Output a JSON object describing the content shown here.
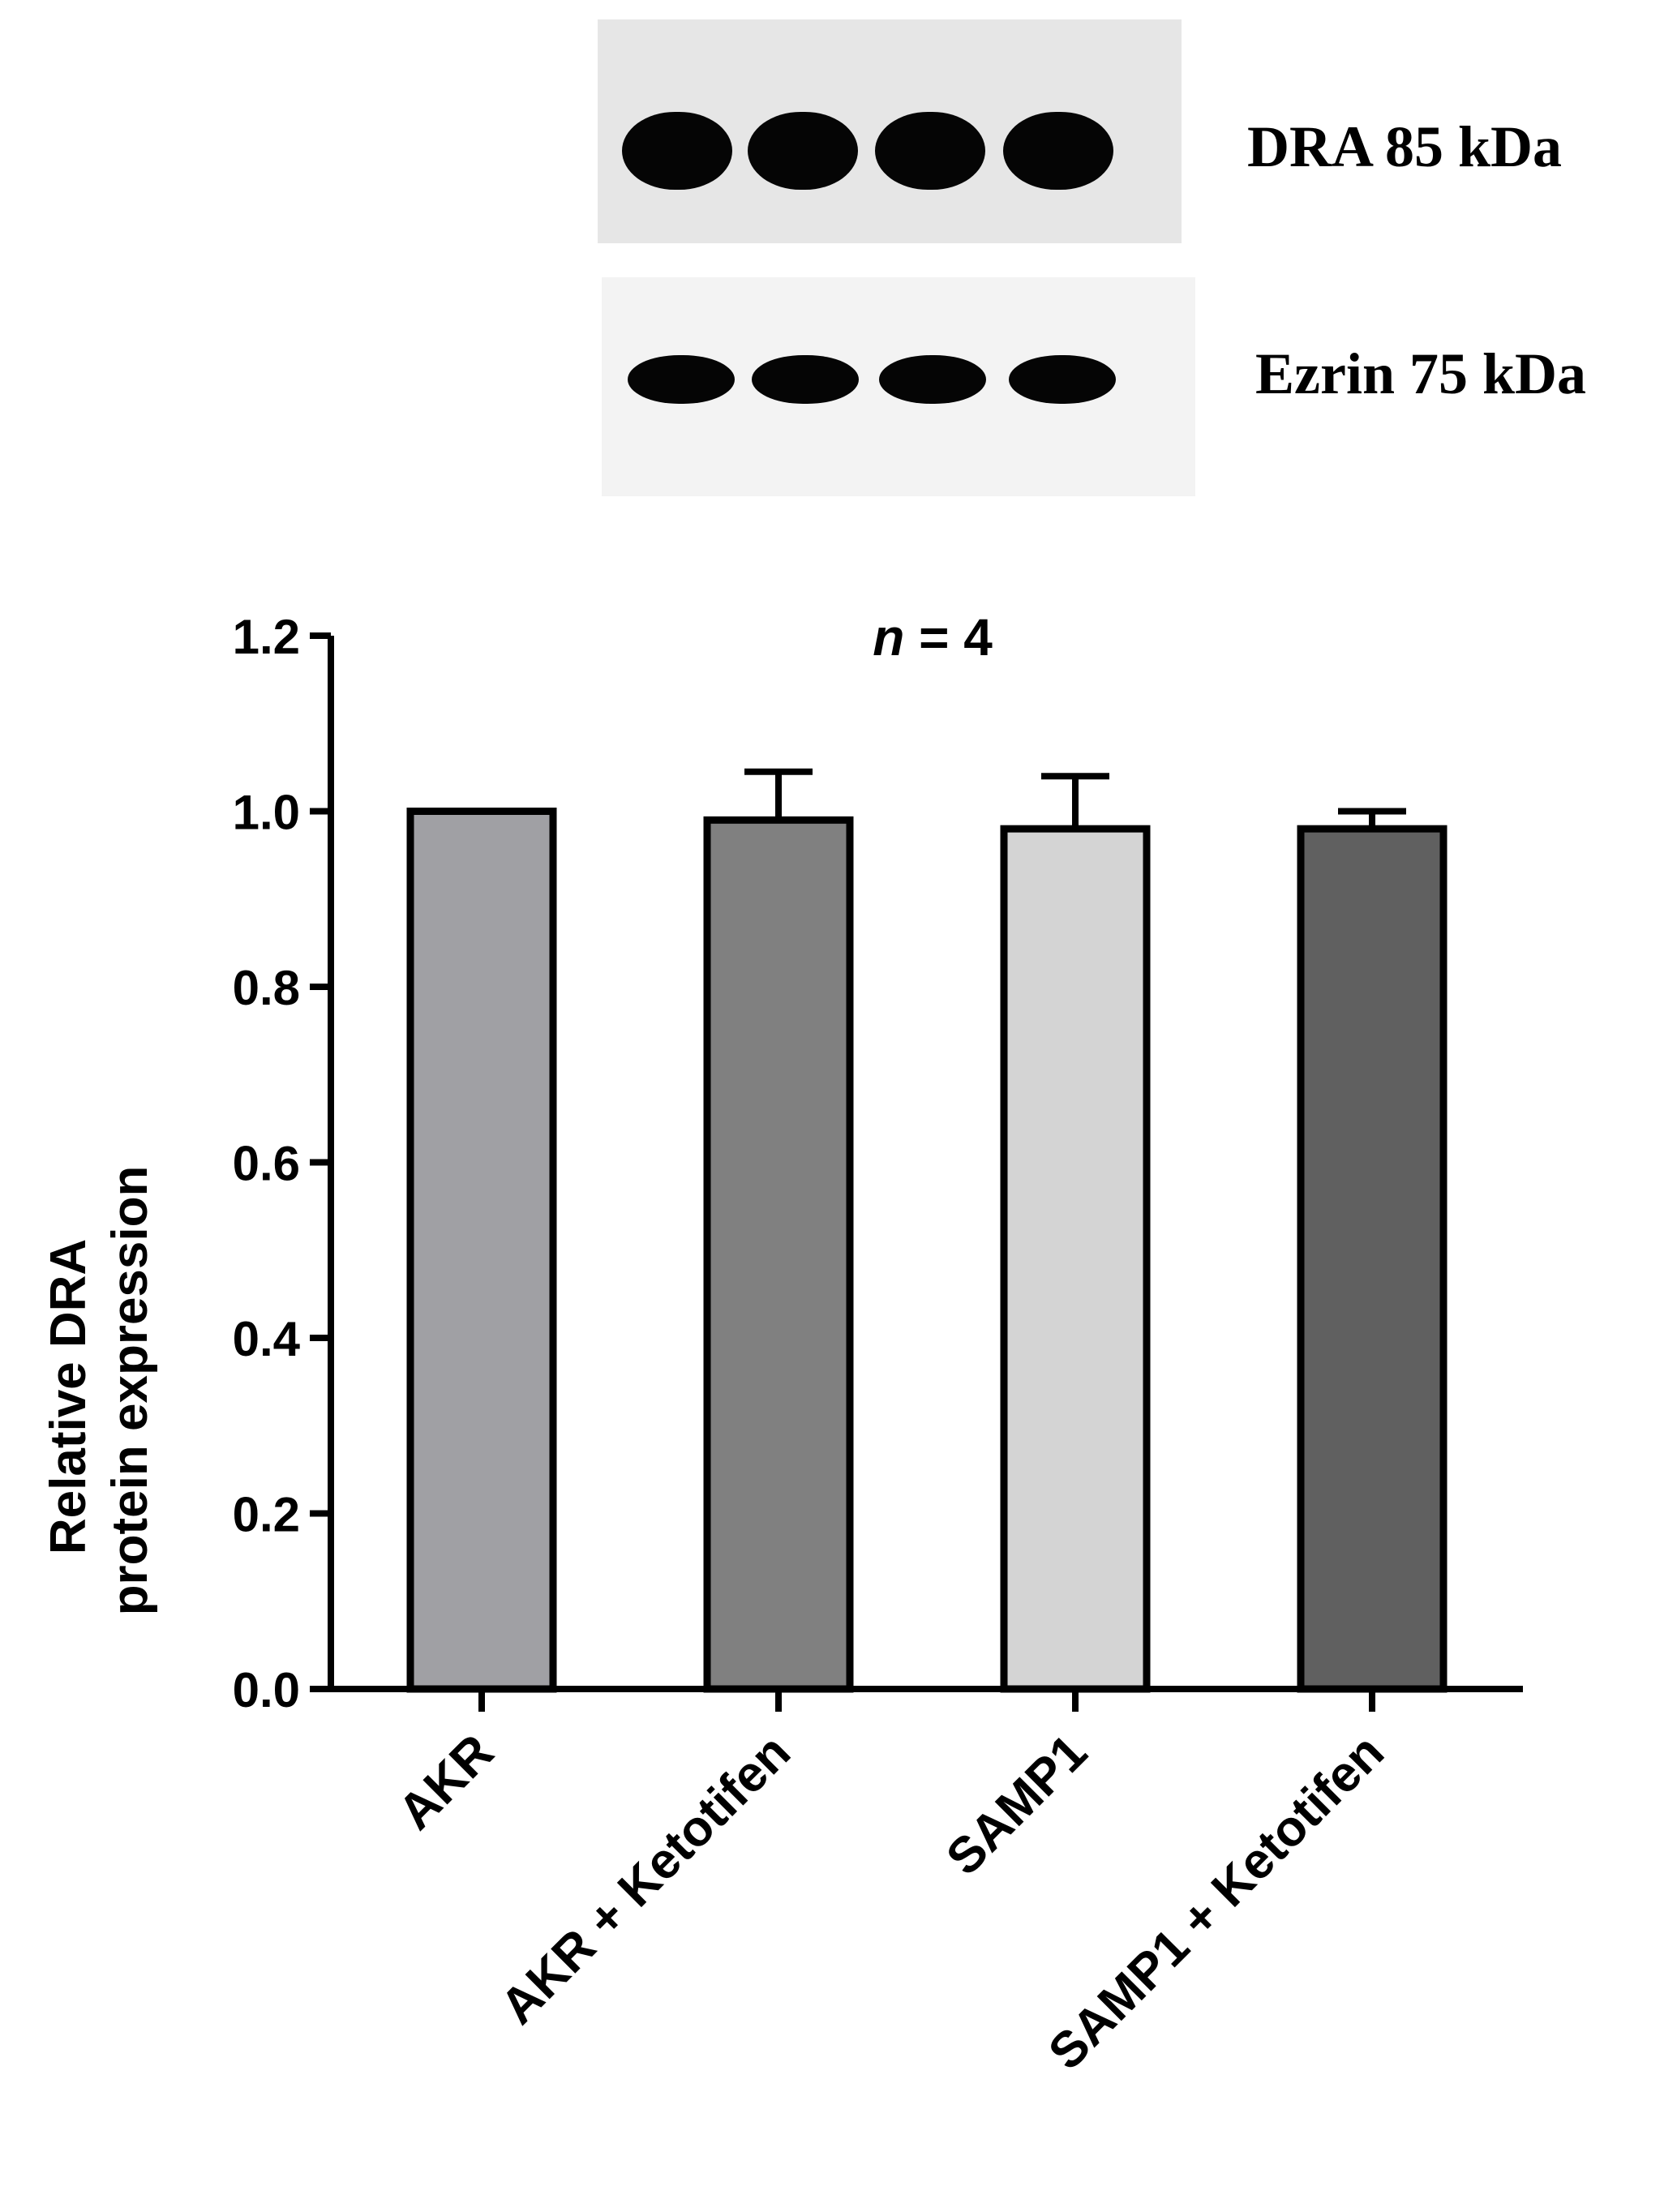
{
  "western_blot": {
    "lanes": 4,
    "bands": [
      {
        "label": "DRA 85 kDa"
      },
      {
        "label": "Ezrin 75 kDa"
      }
    ]
  },
  "chart_data": {
    "type": "bar",
    "title_prefix": "n",
    "title_suffix": " = 4",
    "ylabel_line1": "Relative DRA",
    "ylabel_line2": "protein expression",
    "xlabel": "",
    "categories": [
      "AKR",
      "AKR + Ketotifen",
      "SAMP1",
      "SAMP1 + Ketotifen"
    ],
    "values": [
      1.0,
      0.99,
      0.98,
      0.98
    ],
    "errors": [
      0.0,
      0.055,
      0.06,
      0.02
    ],
    "bar_colors": [
      "#a0a0a4",
      "#808080",
      "#d4d4d4",
      "#606060"
    ],
    "ylim": [
      0,
      1.2
    ],
    "yticks": [
      "0.0",
      "0.2",
      "0.4",
      "0.6",
      "0.8",
      "1.0",
      "1.2"
    ],
    "grid": false,
    "legend": "none"
  }
}
